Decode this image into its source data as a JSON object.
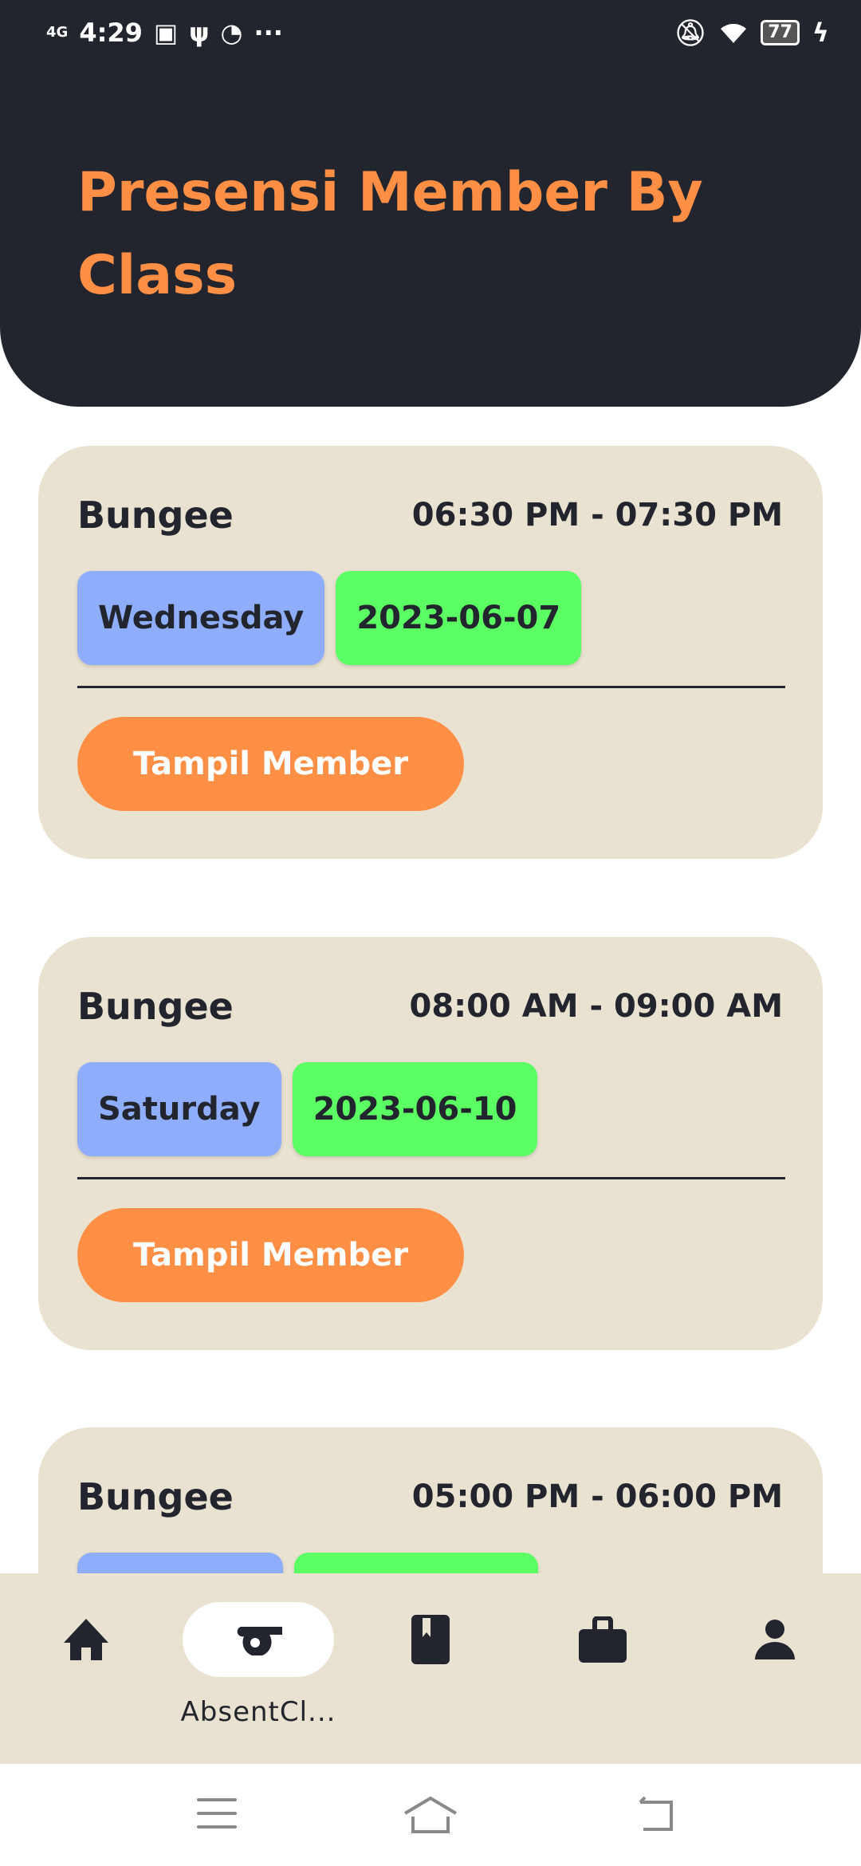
{
  "status_bar": {
    "network": "4G",
    "time": "4:29",
    "battery": "77",
    "more": "···"
  },
  "header": {
    "title": "Presensi Member By Class"
  },
  "colors": {
    "header_bg": "#22252e",
    "accent": "#ff8f45",
    "card_bg": "#e9e2d0",
    "day_chip": "#8eaefc",
    "date_chip": "#5cff63"
  },
  "classes": [
    {
      "name": "Bungee",
      "time": "06:30 PM - 07:30 PM",
      "day": "Wednesday",
      "date": "2023-06-07",
      "button": "Tampil Member"
    },
    {
      "name": "Bungee",
      "time": "08:00 AM - 09:00 AM",
      "day": "Saturday",
      "date": "2023-06-10",
      "button": "Tampil Member"
    },
    {
      "name": "Bungee",
      "time": "05:00 PM - 06:00 PM",
      "day": "",
      "date": "",
      "button": ""
    }
  ],
  "bottom_nav": {
    "items": [
      {
        "icon": "home-icon",
        "label": ""
      },
      {
        "icon": "whistle-icon",
        "label": "AbsentCl...",
        "active": true
      },
      {
        "icon": "book-icon",
        "label": ""
      },
      {
        "icon": "briefcase-icon",
        "label": ""
      },
      {
        "icon": "person-icon",
        "label": ""
      }
    ]
  },
  "system_nav": [
    "menu-icon",
    "home-icon",
    "back-icon"
  ]
}
